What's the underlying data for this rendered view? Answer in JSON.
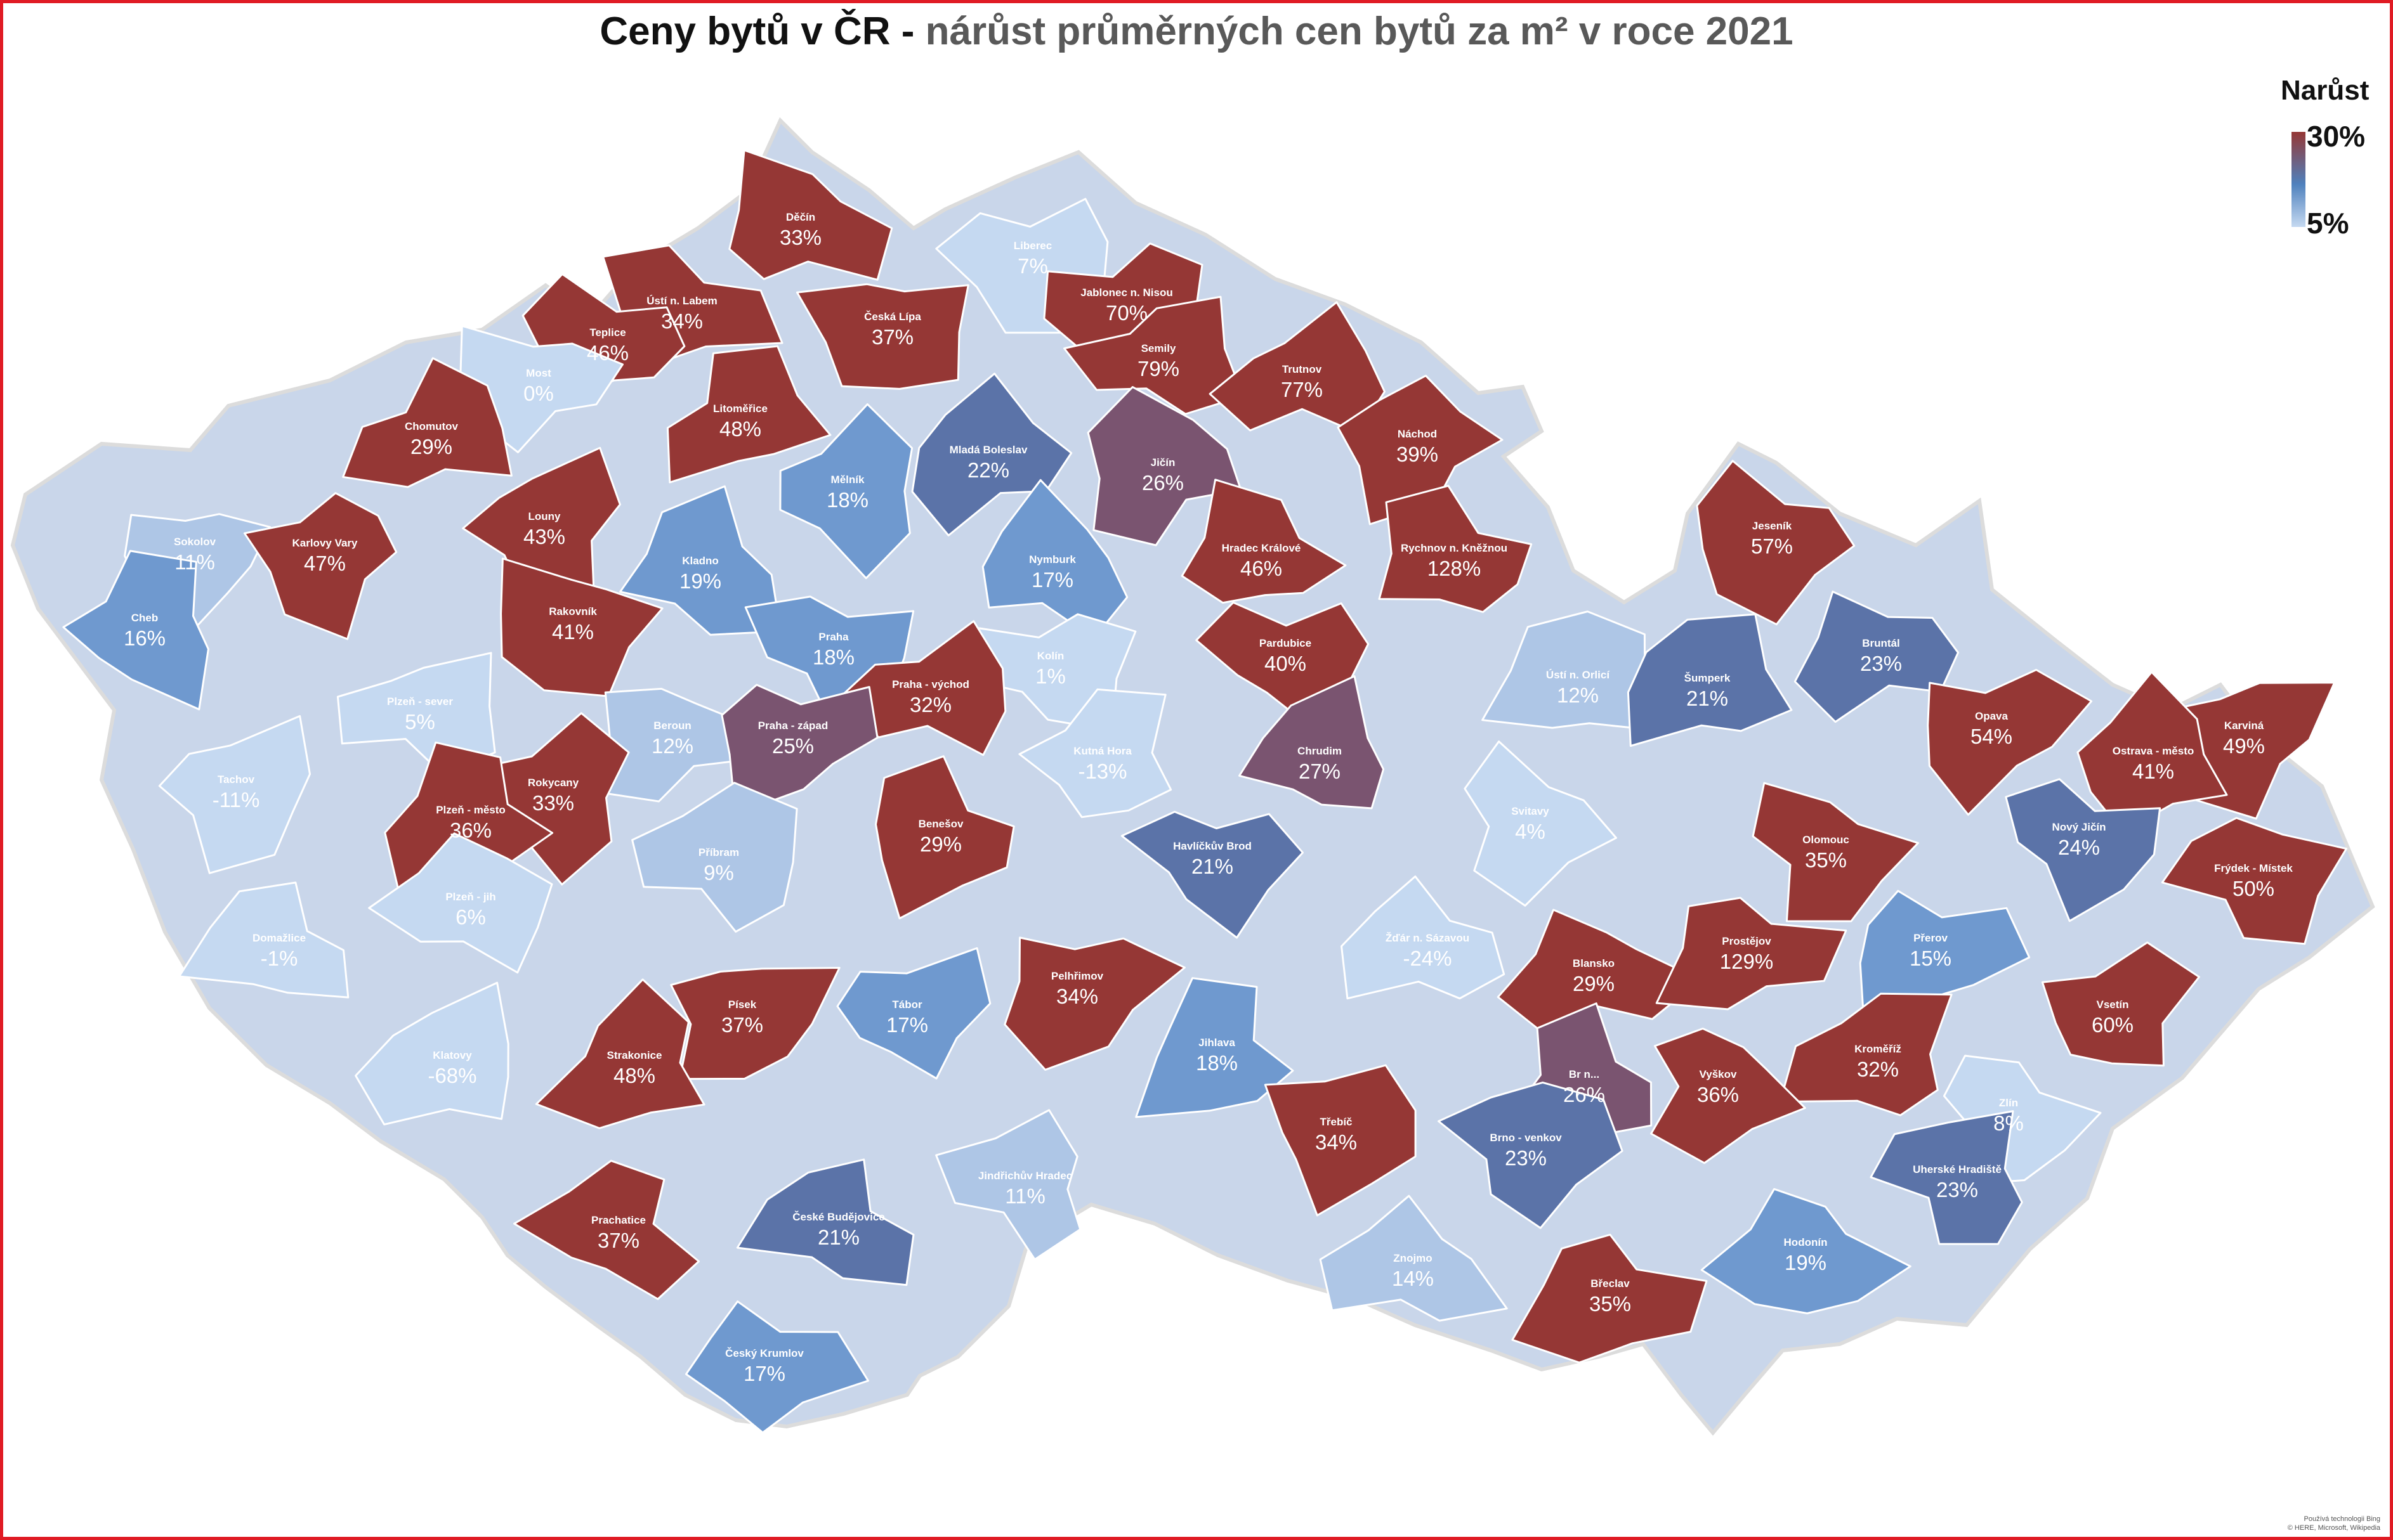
{
  "title": {
    "bold": "Ceny bytů v ČR -",
    "rest": "nárůst průměrných cen bytů za m² v roce 2021"
  },
  "legend": {
    "title": "Narůst",
    "max": "30%",
    "min": "5%"
  },
  "colors": {
    "high": "#953735",
    "mid_high": "#7a5470",
    "mid": "#5b73a8",
    "mid_low": "#6f99cf",
    "low": "#aec6e6",
    "lowest": "#c5d9f1",
    "border": "#ffffff",
    "frame": "#e01b24"
  },
  "attribution": [
    "Používá technologii Bing",
    "© HERE, Microsoft, Wikipedia"
  ],
  "districts": [
    {
      "name": "Děčín",
      "value": "33%",
      "pct": 33
    },
    {
      "name": "Ústí n. Labem",
      "value": "34%",
      "pct": 34
    },
    {
      "name": "Teplice",
      "value": "46%",
      "pct": 46
    },
    {
      "name": "Most",
      "value": "0%",
      "pct": 0
    },
    {
      "name": "Česká Lípa",
      "value": "37%",
      "pct": 37
    },
    {
      "name": "Liberec",
      "value": "7%",
      "pct": 7
    },
    {
      "name": "Jablonec n. Nisou",
      "value": "70%",
      "pct": 70
    },
    {
      "name": "Semily",
      "value": "79%",
      "pct": 79
    },
    {
      "name": "Trutnov",
      "value": "77%",
      "pct": 77
    },
    {
      "name": "Chomutov",
      "value": "29%",
      "pct": 29
    },
    {
      "name": "Litoměřice",
      "value": "48%",
      "pct": 48
    },
    {
      "name": "Mladá Boleslav",
      "value": "22%",
      "pct": 22
    },
    {
      "name": "Jičín",
      "value": "26%",
      "pct": 26
    },
    {
      "name": "Náchod",
      "value": "39%",
      "pct": 39
    },
    {
      "name": "Sokolov",
      "value": "11%",
      "pct": 11
    },
    {
      "name": "Karlovy Vary",
      "value": "47%",
      "pct": 47
    },
    {
      "name": "Louny",
      "value": "43%",
      "pct": 43
    },
    {
      "name": "Mělník",
      "value": "18%",
      "pct": 18
    },
    {
      "name": "Cheb",
      "value": "16%",
      "pct": 16
    },
    {
      "name": "Kladno",
      "value": "19%",
      "pct": 19
    },
    {
      "name": "Nymburk",
      "value": "17%",
      "pct": 17
    },
    {
      "name": "Hradec Králové",
      "value": "46%",
      "pct": 46
    },
    {
      "name": "Rychnov n. Kněžnou",
      "value": "128%",
      "pct": 128
    },
    {
      "name": "Jeseník",
      "value": "57%",
      "pct": 57
    },
    {
      "name": "Rakovník",
      "value": "41%",
      "pct": 41
    },
    {
      "name": "Praha",
      "value": "18%",
      "pct": 18
    },
    {
      "name": "Pardubice",
      "value": "40%",
      "pct": 40
    },
    {
      "name": "Kolín",
      "value": "1%",
      "pct": 1
    },
    {
      "name": "Plzeň - sever",
      "value": "5%",
      "pct": 5
    },
    {
      "name": "Praha - východ",
      "value": "32%",
      "pct": 32
    },
    {
      "name": "Ústí n. Orlicí",
      "value": "12%",
      "pct": 12
    },
    {
      "name": "Šumperk",
      "value": "21%",
      "pct": 21
    },
    {
      "name": "Bruntál",
      "value": "23%",
      "pct": 23
    },
    {
      "name": "Beroun",
      "value": "12%",
      "pct": 12
    },
    {
      "name": "Praha - západ",
      "value": "25%",
      "pct": 25
    },
    {
      "name": "Opava",
      "value": "54%",
      "pct": 54
    },
    {
      "name": "Karviná",
      "value": "49%",
      "pct": 49
    },
    {
      "name": "Tachov",
      "value": "-11%",
      "pct": -11
    },
    {
      "name": "Rokycany",
      "value": "33%",
      "pct": 33
    },
    {
      "name": "Kutná Hora",
      "value": "-13%",
      "pct": -13
    },
    {
      "name": "Chrudim",
      "value": "27%",
      "pct": 27
    },
    {
      "name": "Ostrava - město",
      "value": "41%",
      "pct": 41
    },
    {
      "name": "Plzeň - město",
      "value": "36%",
      "pct": 36
    },
    {
      "name": "Benešov",
      "value": "29%",
      "pct": 29
    },
    {
      "name": "Svitavy",
      "value": "4%",
      "pct": 4
    },
    {
      "name": "Olomouc",
      "value": "35%",
      "pct": 35
    },
    {
      "name": "Nový Jičín",
      "value": "24%",
      "pct": 24
    },
    {
      "name": "Havlíčkův Brod",
      "value": "21%",
      "pct": 21
    },
    {
      "name": "Frýdek - Místek",
      "value": "50%",
      "pct": 50
    },
    {
      "name": "Příbram",
      "value": "9%",
      "pct": 9
    },
    {
      "name": "Plzeň - jih",
      "value": "6%",
      "pct": 6
    },
    {
      "name": "Domažlice",
      "value": "-1%",
      "pct": -1
    },
    {
      "name": "Žďár n. Sázavou",
      "value": "-24%",
      "pct": -24
    },
    {
      "name": "Blansko",
      "value": "29%",
      "pct": 29
    },
    {
      "name": "Prostějov",
      "value": "129%",
      "pct": 129
    },
    {
      "name": "Přerov",
      "value": "15%",
      "pct": 15
    },
    {
      "name": "Pelhřimov",
      "value": "34%",
      "pct": 34
    },
    {
      "name": "Písek",
      "value": "37%",
      "pct": 37
    },
    {
      "name": "Tábor",
      "value": "17%",
      "pct": 17
    },
    {
      "name": "Vsetín",
      "value": "60%",
      "pct": 60
    },
    {
      "name": "Kroměříž",
      "value": "32%",
      "pct": 32
    },
    {
      "name": "Klatovy",
      "value": "-68%",
      "pct": -68
    },
    {
      "name": "Strakonice",
      "value": "48%",
      "pct": 48
    },
    {
      "name": "Jihlava",
      "value": "18%",
      "pct": 18
    },
    {
      "name": "Br n...",
      "value": "26%",
      "pct": 26
    },
    {
      "name": "Vyškov",
      "value": "36%",
      "pct": 36
    },
    {
      "name": "Zlín",
      "value": "8%",
      "pct": 8
    },
    {
      "name": "Třebíč",
      "value": "34%",
      "pct": 34
    },
    {
      "name": "Brno - venkov",
      "value": "23%",
      "pct": 23
    },
    {
      "name": "Uherské Hradiště",
      "value": "23%",
      "pct": 23
    },
    {
      "name": "Jindřichův Hradec",
      "value": "11%",
      "pct": 11
    },
    {
      "name": "Prachatice",
      "value": "37%",
      "pct": 37
    },
    {
      "name": "České Budějovice",
      "value": "21%",
      "pct": 21
    },
    {
      "name": "Znojmo",
      "value": "14%",
      "pct": 14
    },
    {
      "name": "Hodonín",
      "value": "19%",
      "pct": 19
    },
    {
      "name": "Břeclav",
      "value": "35%",
      "pct": 35
    },
    {
      "name": "Český Krumlov",
      "value": "17%",
      "pct": 17
    }
  ]
}
